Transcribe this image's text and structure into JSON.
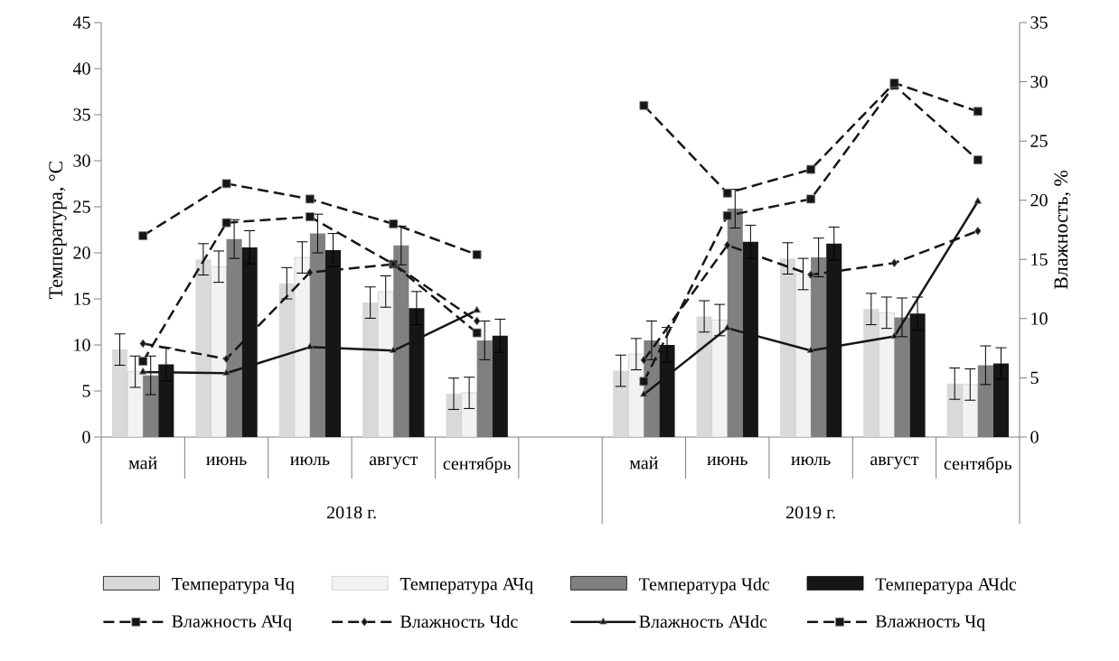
{
  "chart_data": {
    "type": "bar",
    "categories": [
      "май",
      "июнь",
      "июль",
      "август",
      "сентябрь",
      null,
      "май",
      "июнь",
      "июль",
      "август",
      "сентябрь"
    ],
    "ylabel": "Температура, °C",
    "y2label": "Влажность, %",
    "ylim": [
      0,
      45
    ],
    "yticks": [
      0,
      5,
      10,
      15,
      20,
      25,
      30,
      35,
      40,
      45
    ],
    "y2lim": [
      0,
      35
    ],
    "y2ticks": [
      0,
      5,
      10,
      15,
      20,
      25,
      30,
      35
    ],
    "legend": "bottom",
    "annotations": [
      "2018 г.",
      "2019 г."
    ],
    "series": [
      {
        "name": "Температура Чq",
        "color": "#d9d9d9",
        "values": [
          9.5,
          19.3,
          16.7,
          14.6,
          4.7,
          null,
          7.2,
          13.1,
          19.4,
          13.9,
          5.8
        ],
        "errors": [
          1.7,
          1.7,
          1.7,
          1.7,
          1.7,
          null,
          1.7,
          1.7,
          1.7,
          1.7,
          1.7
        ]
      },
      {
        "name": "Температура АЧq",
        "color": "#f2f2f2",
        "values": [
          7.1,
          18.5,
          19.5,
          15.8,
          4.8,
          null,
          9.0,
          12.7,
          17.7,
          13.5,
          5.7
        ],
        "errors": [
          1.7,
          1.7,
          1.7,
          1.7,
          1.7,
          null,
          1.7,
          1.7,
          1.7,
          1.7,
          1.7
        ]
      },
      {
        "name": "Температура Чdc",
        "color": "#808080",
        "values": [
          6.7,
          21.5,
          22.1,
          20.8,
          10.5,
          null,
          10.5,
          24.8,
          19.5,
          13.0,
          7.8
        ],
        "errors": [
          2.1,
          2.1,
          2.1,
          2.1,
          2.1,
          null,
          2.1,
          2.1,
          2.1,
          2.1,
          2.1
        ]
      },
      {
        "name": "Температура АЧdc",
        "color": "#161616",
        "values": [
          7.9,
          20.6,
          20.3,
          14.0,
          11.0,
          null,
          10.0,
          21.2,
          21.0,
          13.4,
          8.0
        ],
        "errors": [
          1.8,
          1.8,
          1.8,
          1.8,
          1.8,
          null,
          1.9,
          1.8,
          1.8,
          1.8,
          1.7
        ]
      },
      {
        "name": "Влажность АЧq",
        "type": "line",
        "axis": "y2",
        "color": "#161616",
        "marker": "square",
        "line_style": "dashed",
        "values": [
          6.4,
          18.1,
          18.6,
          14.6,
          8.8,
          null,
          4.7,
          18.7,
          20.1,
          29.7,
          23.4
        ]
      },
      {
        "name": "Влажность Чdc",
        "type": "line",
        "axis": "y2",
        "color": "#161616",
        "marker": "diamond",
        "line_style": "dashed",
        "values": [
          7.9,
          6.6,
          13.9,
          14.6,
          9.8,
          null,
          6.5,
          16.2,
          13.7,
          14.7,
          17.4
        ]
      },
      {
        "name": "Влажность АЧdc",
        "type": "line",
        "axis": "y2",
        "color": "#161616",
        "marker": "triangle",
        "line_style": "solid",
        "values": [
          5.5,
          5.4,
          7.6,
          7.3,
          10.7,
          null,
          3.6,
          9.2,
          7.3,
          8.5,
          19.9
        ]
      },
      {
        "name": "Влажность Чq",
        "type": "line",
        "axis": "y2",
        "color": "#161616",
        "marker": "square",
        "line_style": "dashed",
        "values": [
          17.0,
          21.4,
          20.1,
          18.0,
          15.4,
          null,
          28.0,
          20.6,
          22.6,
          29.9,
          27.5
        ]
      }
    ]
  }
}
